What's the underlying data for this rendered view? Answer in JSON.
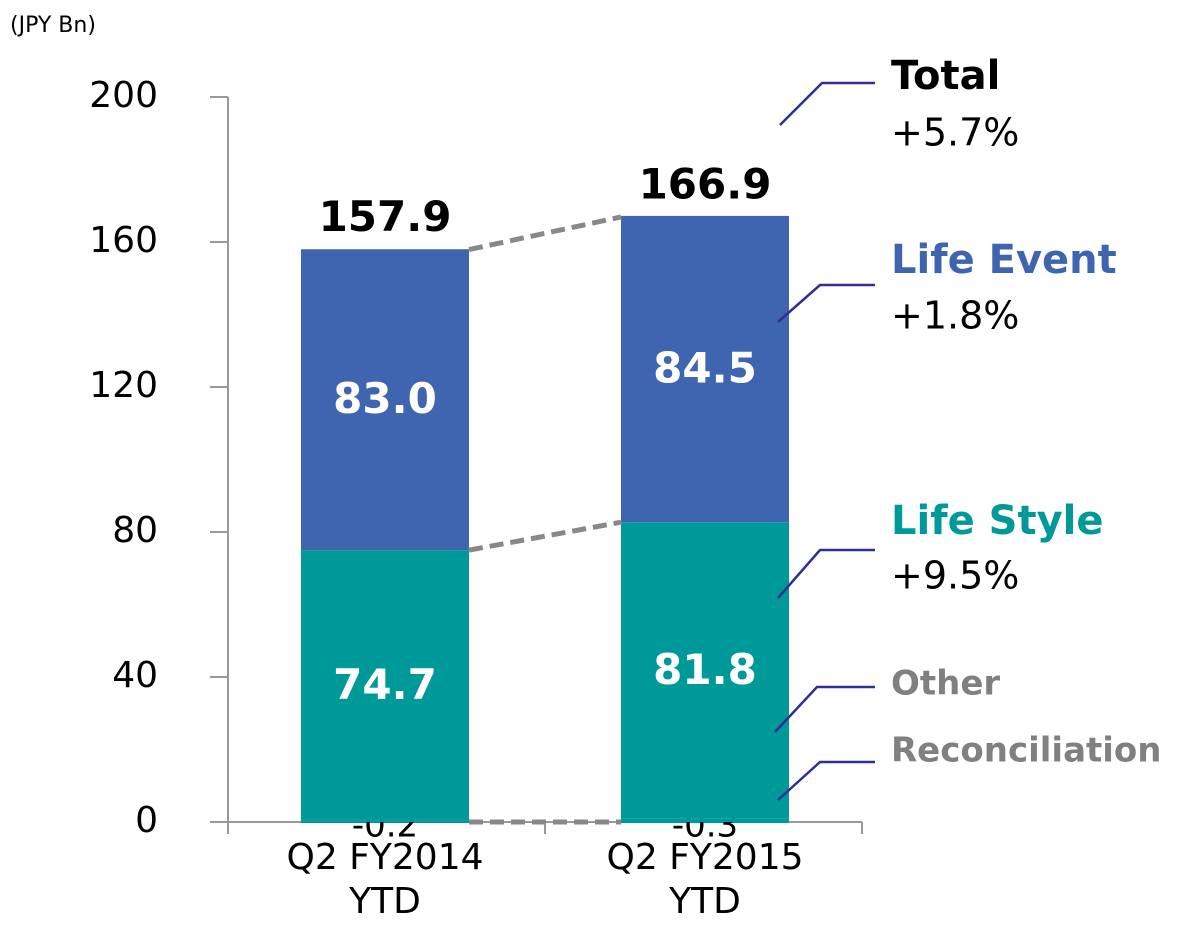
{
  "chart_data": {
    "type": "stacked_bar",
    "y_unit": "(JPY Bn)",
    "categories": [
      "Q2 FY2014 YTD",
      "Q2 FY2015 YTD"
    ],
    "series": [
      {
        "name": "Reconciliation",
        "color": "#009999",
        "values": [
          -0.2,
          -0.3
        ]
      },
      {
        "name": "Other",
        "color": "#009999",
        "values": [
          0.3,
          0.9
        ]
      },
      {
        "name": "Life Style",
        "color": "#009999",
        "values": [
          74.7,
          81.8
        ],
        "growth": "+9.5%"
      },
      {
        "name": "Life Event",
        "color": "#4065b0",
        "values": [
          83.0,
          84.5
        ],
        "value_labels": [
          "83.0",
          "84.5"
        ],
        "growth": "+1.8%"
      }
    ],
    "total": {
      "name": "Total",
      "values": [
        157.9,
        166.9
      ],
      "growth": "+5.7%"
    },
    "ylim": [
      0,
      200
    ],
    "yticks": [
      0,
      40,
      80,
      120,
      160,
      200
    ]
  }
}
